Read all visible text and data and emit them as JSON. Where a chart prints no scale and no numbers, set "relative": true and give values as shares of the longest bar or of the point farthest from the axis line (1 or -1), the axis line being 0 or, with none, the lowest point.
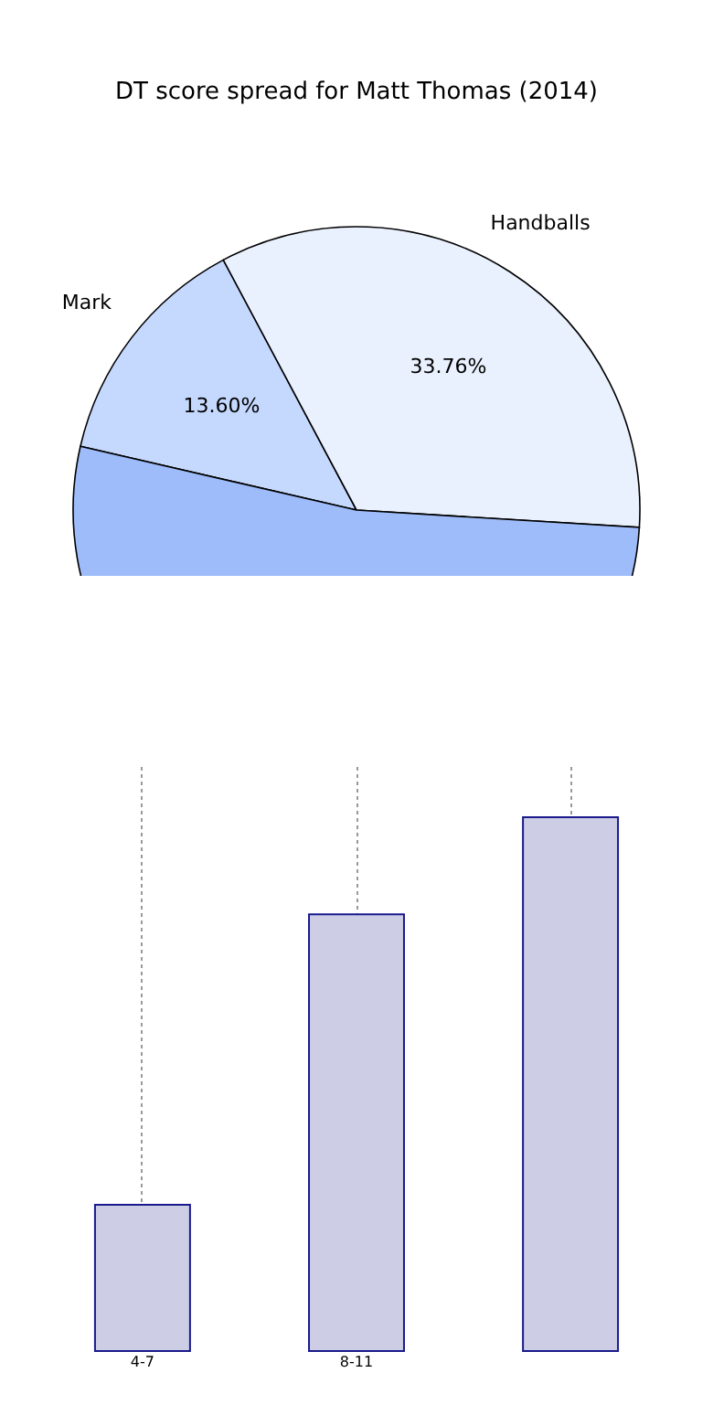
{
  "chart_data": [
    {
      "type": "pie",
      "title": "DT score spread for Matt Thomas (2014)",
      "categories": [
        "Mark",
        "Handballs",
        null
      ],
      "values": [
        13.6,
        33.76,
        52.64
      ],
      "colors": [
        "#c5d8fe",
        "#eaf1fe",
        "#9ebcf9"
      ],
      "value_labels": [
        "13.60%",
        "33.76%",
        null
      ]
    },
    {
      "type": "bar",
      "categories": [
        "4-7",
        "8-11",
        null
      ],
      "values": [
        0.274,
        0.818,
        1
      ],
      "relative": true,
      "color": "#cdcde6",
      "grid": "x"
    }
  ]
}
